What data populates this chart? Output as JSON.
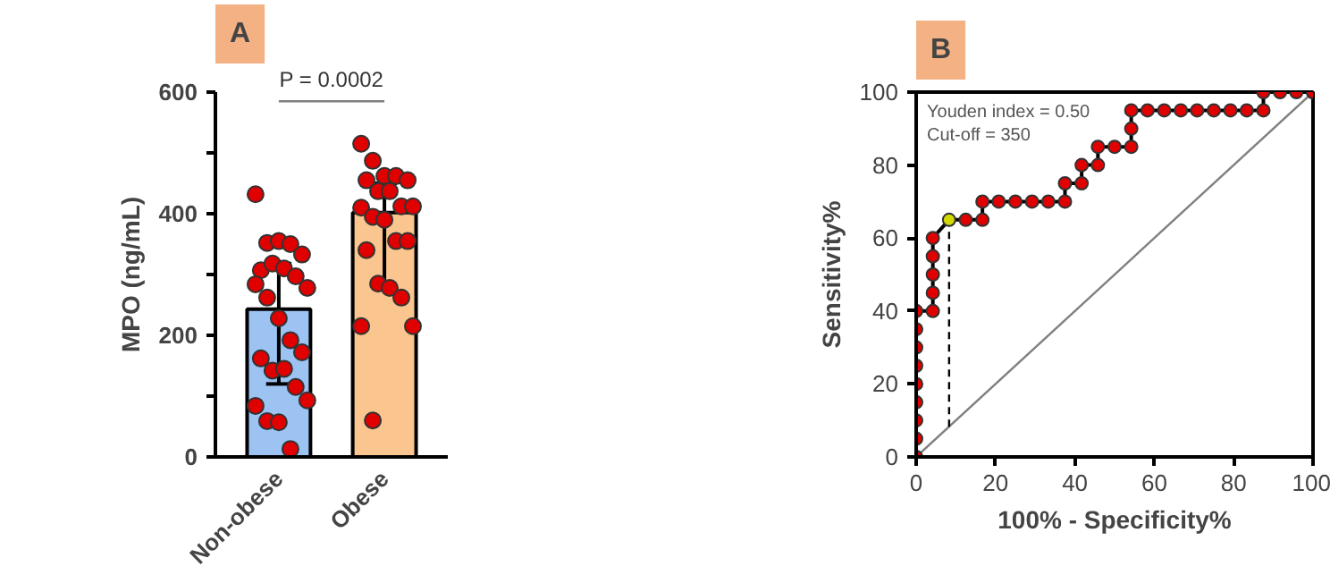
{
  "chart_data": [
    {
      "type": "bar",
      "title": "A",
      "ylabel": "MPO (ng/mL)",
      "categories": [
        "Non-obese",
        "Obese"
      ],
      "ylim": [
        0,
        600
      ],
      "yticks": [
        0,
        {
          "value": 100,
          "label": null
        },
        200,
        {
          "value": 300,
          "label": null
        },
        400,
        {
          "value": 500,
          "label": null
        },
        600
      ],
      "grid": false,
      "marker": "circle",
      "annotations": [
        "P = 0.0002"
      ],
      "series": [
        {
          "colors": [
            "#9cc3f2",
            "#fbc58f"
          ],
          "values": [
            243,
            402
          ],
          "errors": [
            [
              120,
              318
            ],
            [
              280,
              450
            ]
          ]
        },
        {
          "type": "line",
          "color": "#808080",
          "marker": "none",
          "x": [
            "Non-obese",
            "Obese"
          ],
          "values": [
            585,
            585
          ]
        },
        {
          "type": "scatter",
          "color": "#e00000",
          "x": [
            "Non-obese",
            "Non-obese",
            "Non-obese",
            "Non-obese",
            "Non-obese",
            "Non-obese",
            "Non-obese",
            "Non-obese",
            "Non-obese",
            "Non-obese",
            "Non-obese",
            "Non-obese",
            "Non-obese",
            "Non-obese",
            "Non-obese",
            "Non-obese",
            "Non-obese",
            "Non-obese",
            "Non-obese",
            "Non-obese",
            "Non-obese",
            "Non-obese",
            "Non-obese",
            "Non-obese",
            "Obese",
            "Obese",
            "Obese",
            "Obese",
            "Obese",
            "Obese",
            "Obese",
            "Obese",
            "Obese",
            "Obese",
            "Obese",
            "Obese",
            "Obese",
            "Obese",
            "Obese",
            "Obese",
            "Obese",
            "Obese",
            "Obese",
            "Obese",
            "Obese",
            "Obese"
          ],
          "values": [
            432,
            352,
            355,
            350,
            333,
            307,
            318,
            310,
            297,
            278,
            284,
            262,
            228,
            192,
            172,
            162,
            142,
            145,
            115,
            93,
            84,
            59,
            57,
            13,
            515,
            487,
            462,
            462,
            455,
            455,
            437,
            437,
            412,
            412,
            410,
            395,
            390,
            355,
            355,
            340,
            285,
            278,
            262,
            215,
            215,
            60
          ]
        }
      ]
    },
    {
      "type": "line",
      "title": "B",
      "xlabel": "100% - Specificity%",
      "ylabel": "Sensitivity%",
      "xlim": [
        0,
        100
      ],
      "ylim": [
        0,
        100
      ],
      "xticks": [
        0,
        20,
        40,
        60,
        80,
        100
      ],
      "yticks": [
        0,
        20,
        40,
        60,
        80,
        100
      ],
      "grid": false,
      "annotations": [
        "Youden index = 0.50",
        "Cut-off = 350"
      ],
      "series": [
        {
          "color": "#808080",
          "marker": "none",
          "x": [
            0,
            100
          ],
          "values": [
            0,
            100
          ]
        },
        {
          "color": "#000000",
          "line_style": "dashed",
          "marker": "none",
          "x": [
            8.3,
            8.3
          ],
          "values": [
            8.3,
            65
          ]
        },
        {
          "color": "#000000",
          "marker": "circle",
          "colors": [
            "#e00000",
            "#e00000",
            "#e00000",
            "#e00000",
            "#e00000",
            "#e00000",
            "#e00000",
            "#e00000",
            "#e00000",
            "#e00000",
            "#e00000",
            "#e00000",
            "#e00000",
            "#e00000",
            "#d2d800",
            "#e00000",
            "#e00000",
            "#e00000",
            "#e00000",
            "#e00000",
            "#e00000",
            "#e00000",
            "#e00000",
            "#e00000",
            "#e00000",
            "#e00000",
            "#e00000",
            "#e00000",
            "#e00000",
            "#e00000",
            "#e00000",
            "#e00000",
            "#e00000",
            "#e00000",
            "#e00000",
            "#e00000",
            "#e00000",
            "#e00000",
            "#e00000",
            "#e00000",
            "#e00000",
            "#e00000",
            "#e00000",
            "#e00000",
            "#e00000"
          ],
          "x": [
            0,
            0,
            0,
            0,
            0,
            0,
            0,
            0,
            0,
            4.2,
            4.2,
            4.2,
            4.2,
            4.2,
            8.3,
            12.5,
            16.7,
            16.7,
            20.8,
            25,
            29.2,
            33.3,
            37.5,
            37.5,
            41.7,
            41.7,
            45.8,
            45.8,
            50,
            54.2,
            54.2,
            54.2,
            58.3,
            62.5,
            66.7,
            70.8,
            75,
            79.2,
            83.3,
            87.5,
            87.5,
            91.7,
            95.8,
            100,
            100
          ],
          "values": [
            0,
            5,
            10,
            15,
            20,
            25,
            30,
            35,
            40,
            40,
            45,
            50,
            55,
            60,
            65,
            65,
            65,
            70,
            70,
            70,
            70,
            70,
            70,
            75,
            75,
            80,
            80,
            85,
            85,
            85,
            90,
            95,
            95,
            95,
            95,
            95,
            95,
            95,
            95,
            95,
            100,
            100,
            100,
            100,
            100
          ]
        }
      ]
    }
  ]
}
